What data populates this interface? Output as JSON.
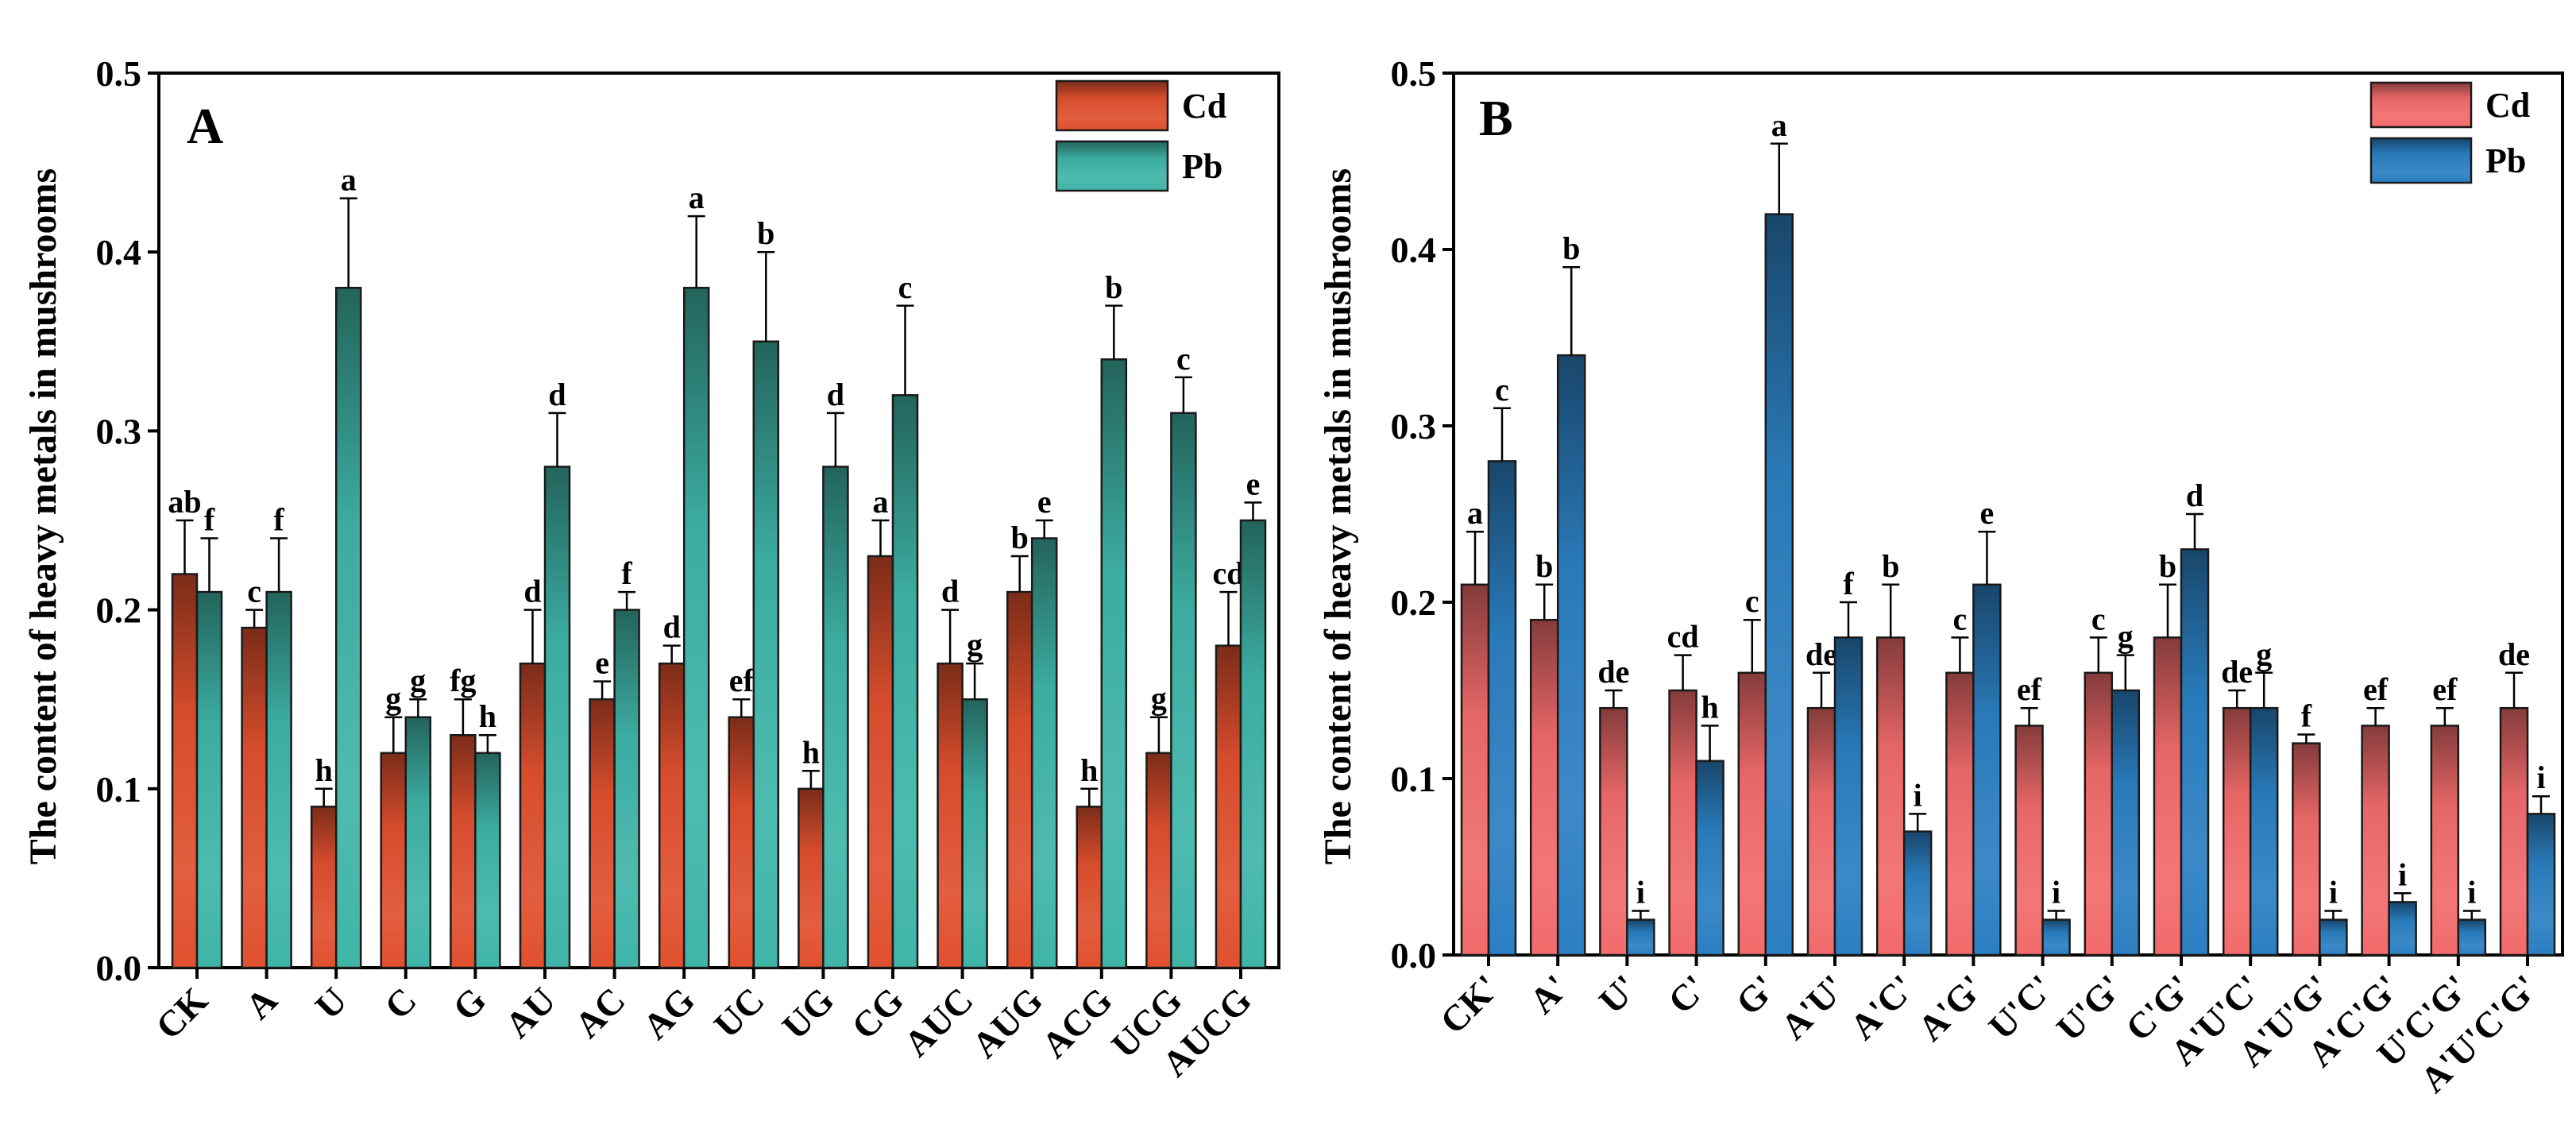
{
  "figure": {
    "ylabel": "The content of heavy metals in mushrooms"
  },
  "chart_data": [
    {
      "type": "bar",
      "panel": "A",
      "ylabel": "The content of heavy metals in mushrooms",
      "ylim": [
        0,
        0.5
      ],
      "yticks": [
        "0.0",
        "0.1",
        "0.2",
        "0.3",
        "0.4",
        "0.5"
      ],
      "categories": [
        "CK",
        "A",
        "U",
        "C",
        "G",
        "AU",
        "AC",
        "AG",
        "UC",
        "UG",
        "CG",
        "AUC",
        "AUG",
        "ACG",
        "UCG",
        "AUCG"
      ],
      "legend": {
        "position": "top-right",
        "entries": [
          "Cd",
          "Pb"
        ]
      },
      "series": [
        {
          "name": "Cd",
          "color": "#e0502e",
          "values": [
            0.22,
            0.19,
            0.09,
            0.12,
            0.13,
            0.17,
            0.15,
            0.17,
            0.14,
            0.1,
            0.23,
            0.17,
            0.21,
            0.09,
            0.12,
            0.18
          ],
          "errors": [
            0.03,
            0.01,
            0.01,
            0.02,
            0.02,
            0.03,
            0.01,
            0.01,
            0.01,
            0.01,
            0.02,
            0.03,
            0.02,
            0.01,
            0.02,
            0.03
          ],
          "letters": [
            "ab",
            "c",
            "h",
            "g",
            "fg",
            "d",
            "e",
            "d",
            "ef",
            "h",
            "a",
            "d",
            "b",
            "h",
            "g",
            "cd"
          ]
        },
        {
          "name": "Pb",
          "color": "#3fb5a8",
          "values": [
            0.21,
            0.21,
            0.38,
            0.14,
            0.12,
            0.28,
            0.2,
            0.38,
            0.35,
            0.28,
            0.32,
            0.15,
            0.24,
            0.34,
            0.31,
            0.25
          ],
          "errors": [
            0.03,
            0.03,
            0.05,
            0.01,
            0.01,
            0.03,
            0.01,
            0.04,
            0.05,
            0.03,
            0.05,
            0.02,
            0.01,
            0.03,
            0.02,
            0.01
          ],
          "letters": [
            "f",
            "f",
            "a",
            "g",
            "h",
            "d",
            "f",
            "a",
            "b",
            "d",
            "c",
            "g",
            "e",
            "b",
            "c",
            "e"
          ]
        }
      ]
    },
    {
      "type": "bar",
      "panel": "B",
      "ylabel": "The content of heavy metals in mushrooms",
      "ylim": [
        0,
        0.5
      ],
      "yticks": [
        "0.0",
        "0.1",
        "0.2",
        "0.3",
        "0.4",
        "0.5"
      ],
      "categories": [
        "CK'",
        "A'",
        "U'",
        "C'",
        "G'",
        "A'U'",
        "A'C'",
        "A'G'",
        "U'C'",
        "U'G'",
        "C'G'",
        "A'U'C'",
        "A'U'G'",
        "A'C'G'",
        "U'C'G'",
        "A'U'C'G'"
      ],
      "legend": {
        "position": "top-right",
        "entries": [
          "Cd",
          "Pb"
        ]
      },
      "series": [
        {
          "name": "Cd",
          "color": "#f26b6b",
          "values": [
            0.21,
            0.19,
            0.14,
            0.15,
            0.16,
            0.14,
            0.18,
            0.16,
            0.13,
            0.16,
            0.18,
            0.14,
            0.12,
            0.13,
            0.13,
            0.14
          ],
          "errors": [
            0.03,
            0.02,
            0.01,
            0.02,
            0.03,
            0.02,
            0.03,
            0.02,
            0.01,
            0.02,
            0.03,
            0.01,
            0.005,
            0.01,
            0.01,
            0.02
          ],
          "letters": [
            "a",
            "b",
            "de",
            "cd",
            "c",
            "de",
            "b",
            "c",
            "ef",
            "c",
            "b",
            "de",
            "f",
            "ef",
            "ef",
            "de"
          ]
        },
        {
          "name": "Pb",
          "color": "#2b7fc2",
          "values": [
            0.28,
            0.34,
            0.02,
            0.11,
            0.42,
            0.18,
            0.07,
            0.21,
            0.02,
            0.15,
            0.23,
            0.14,
            0.02,
            0.03,
            0.02,
            0.08
          ],
          "errors": [
            0.03,
            0.05,
            0.005,
            0.02,
            0.04,
            0.02,
            0.01,
            0.03,
            0.005,
            0.02,
            0.02,
            0.02,
            0.005,
            0.005,
            0.005,
            0.01
          ],
          "letters": [
            "c",
            "b",
            "i",
            "h",
            "a",
            "f",
            "i",
            "e",
            "i",
            "g",
            "d",
            "g",
            "i",
            "i",
            "i",
            "i"
          ]
        }
      ]
    }
  ]
}
